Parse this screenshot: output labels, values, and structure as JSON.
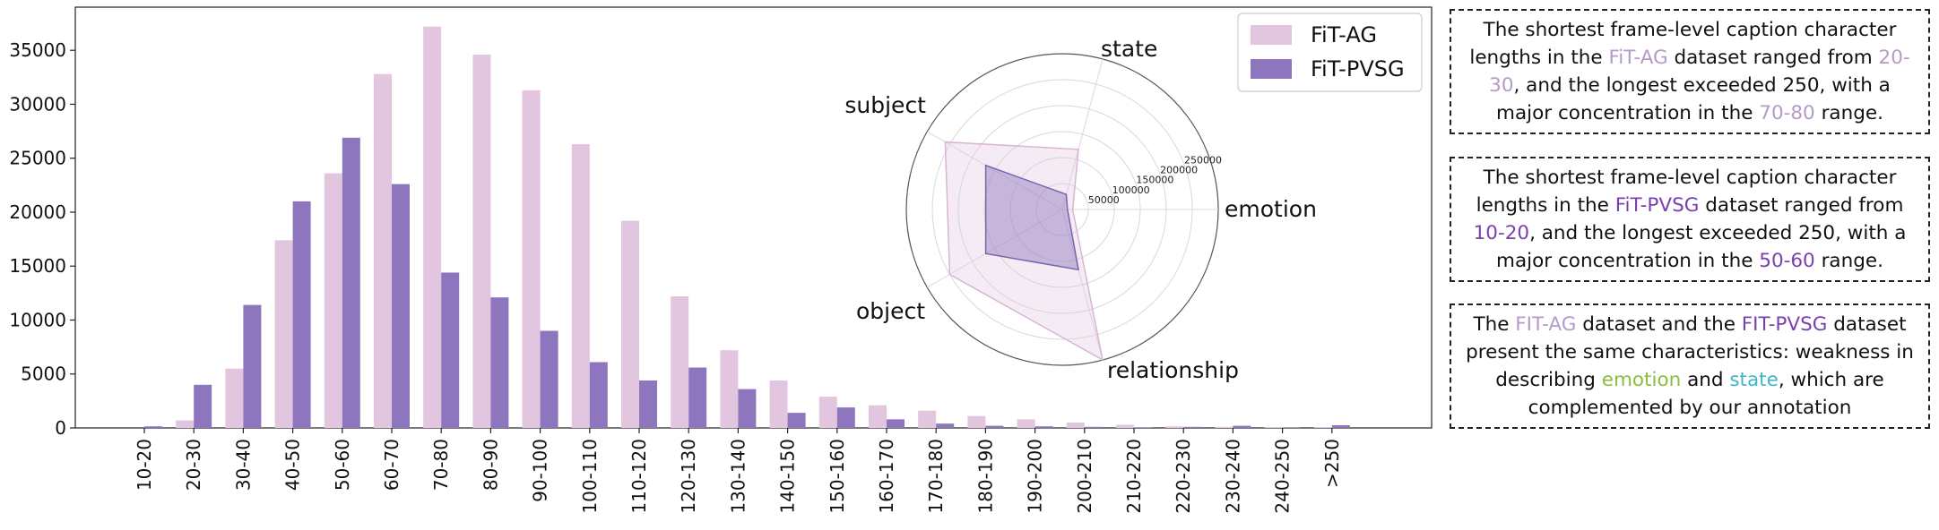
{
  "colors": {
    "fit_ag": "#e2c6df",
    "fit_pvsg": "#8d76bd",
    "highlight_ag": "#b49ac9",
    "highlight_pvsg": "#7a3fb0",
    "highlight_emotion": "#8cbd3f",
    "highlight_state": "#3fb6c4"
  },
  "chart_data": [
    {
      "type": "bar",
      "categories": [
        "10-20",
        "20-30",
        "30-40",
        "40-50",
        "50-60",
        "60-70",
        "70-80",
        "80-90",
        "90-100",
        "100-110",
        "110-120",
        "120-130",
        "130-140",
        "140-150",
        "150-160",
        "160-170",
        "170-180",
        "180-190",
        "190-200",
        "200-210",
        "210-220",
        "220-230",
        "230-240",
        "240-250",
        ">250"
      ],
      "series": [
        {
          "name": "FiT-AG",
          "values": [
            0,
            700,
            5500,
            17400,
            23600,
            32800,
            37200,
            34600,
            31300,
            26300,
            19200,
            12200,
            7200,
            4400,
            2900,
            2100,
            1600,
            1100,
            800,
            500,
            300,
            150,
            100,
            80,
            60
          ]
        },
        {
          "name": "FiT-PVSG",
          "values": [
            150,
            4000,
            11400,
            21000,
            26900,
            22600,
            14400,
            12100,
            9000,
            6100,
            4400,
            5600,
            3600,
            1400,
            1900,
            800,
            400,
            200,
            150,
            100,
            50,
            100,
            200,
            50,
            250
          ]
        }
      ],
      "yticks": [
        "0",
        "5000",
        "10000",
        "15000",
        "20000",
        "25000",
        "30000",
        "35000"
      ],
      "ylim": [
        0,
        39000
      ],
      "legend": {
        "position": "top-right",
        "entries": [
          "FiT-AG",
          "FiT-PVSG"
        ]
      }
    },
    {
      "type": "radar",
      "axes": [
        "emotion",
        "state",
        "subject",
        "object",
        "relationship"
      ],
      "radial_ticks": [
        "50000",
        "100000",
        "150000",
        "200000",
        "250000"
      ],
      "rmax": 300000,
      "series": [
        {
          "name": "FiT-AG",
          "values": [
            20000,
            120000,
            260000,
            250000,
            300000
          ]
        },
        {
          "name": "FiT-PVSG",
          "values": [
            10000,
            30000,
            170000,
            170000,
            120000
          ]
        }
      ]
    }
  ],
  "notes": [
    {
      "parts": [
        {
          "text": "The shortest frame-level caption character lengths in the ",
          "color": ""
        },
        {
          "text": "FiT-AG",
          "color": "highlight_ag"
        },
        {
          "text": " dataset ranged from ",
          "color": ""
        },
        {
          "text": "20-30",
          "color": "highlight_ag"
        },
        {
          "text": ", and the longest exceeded 250, with a major concentration in the ",
          "color": ""
        },
        {
          "text": "70-80",
          "color": "highlight_ag"
        },
        {
          "text": " range.",
          "color": ""
        }
      ]
    },
    {
      "parts": [
        {
          "text": "The shortest frame-level caption character lengths in the ",
          "color": ""
        },
        {
          "text": "FiT-PVSG",
          "color": "highlight_pvsg"
        },
        {
          "text": " dataset ranged from ",
          "color": ""
        },
        {
          "text": "10-20",
          "color": "highlight_pvsg"
        },
        {
          "text": ", and the longest exceeded 250, with a major concentration in the ",
          "color": ""
        },
        {
          "text": "50-60",
          "color": "highlight_pvsg"
        },
        {
          "text": " range.",
          "color": ""
        }
      ]
    },
    {
      "parts": [
        {
          "text": "The ",
          "color": ""
        },
        {
          "text": "FIT-AG",
          "color": "highlight_ag"
        },
        {
          "text": " dataset and the ",
          "color": ""
        },
        {
          "text": "FIT-PVSG",
          "color": "highlight_pvsg"
        },
        {
          "text": " dataset present the same characteristics: weakness in describing ",
          "color": ""
        },
        {
          "text": "emotion",
          "color": "highlight_emotion"
        },
        {
          "text": " and ",
          "color": ""
        },
        {
          "text": "state",
          "color": "highlight_state"
        },
        {
          "text": ", which are complemented by our annotation",
          "color": ""
        }
      ]
    }
  ]
}
